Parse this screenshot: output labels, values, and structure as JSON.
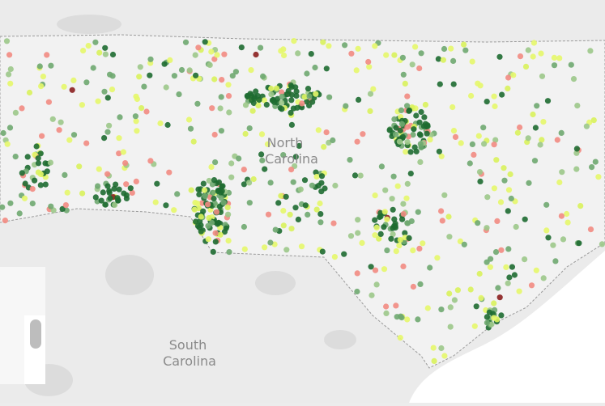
{
  "labels": {
    "north_carolina": [
      "North",
      "Carolina"
    ],
    "south_carolina": [
      "South",
      "Carolina"
    ]
  }
}
